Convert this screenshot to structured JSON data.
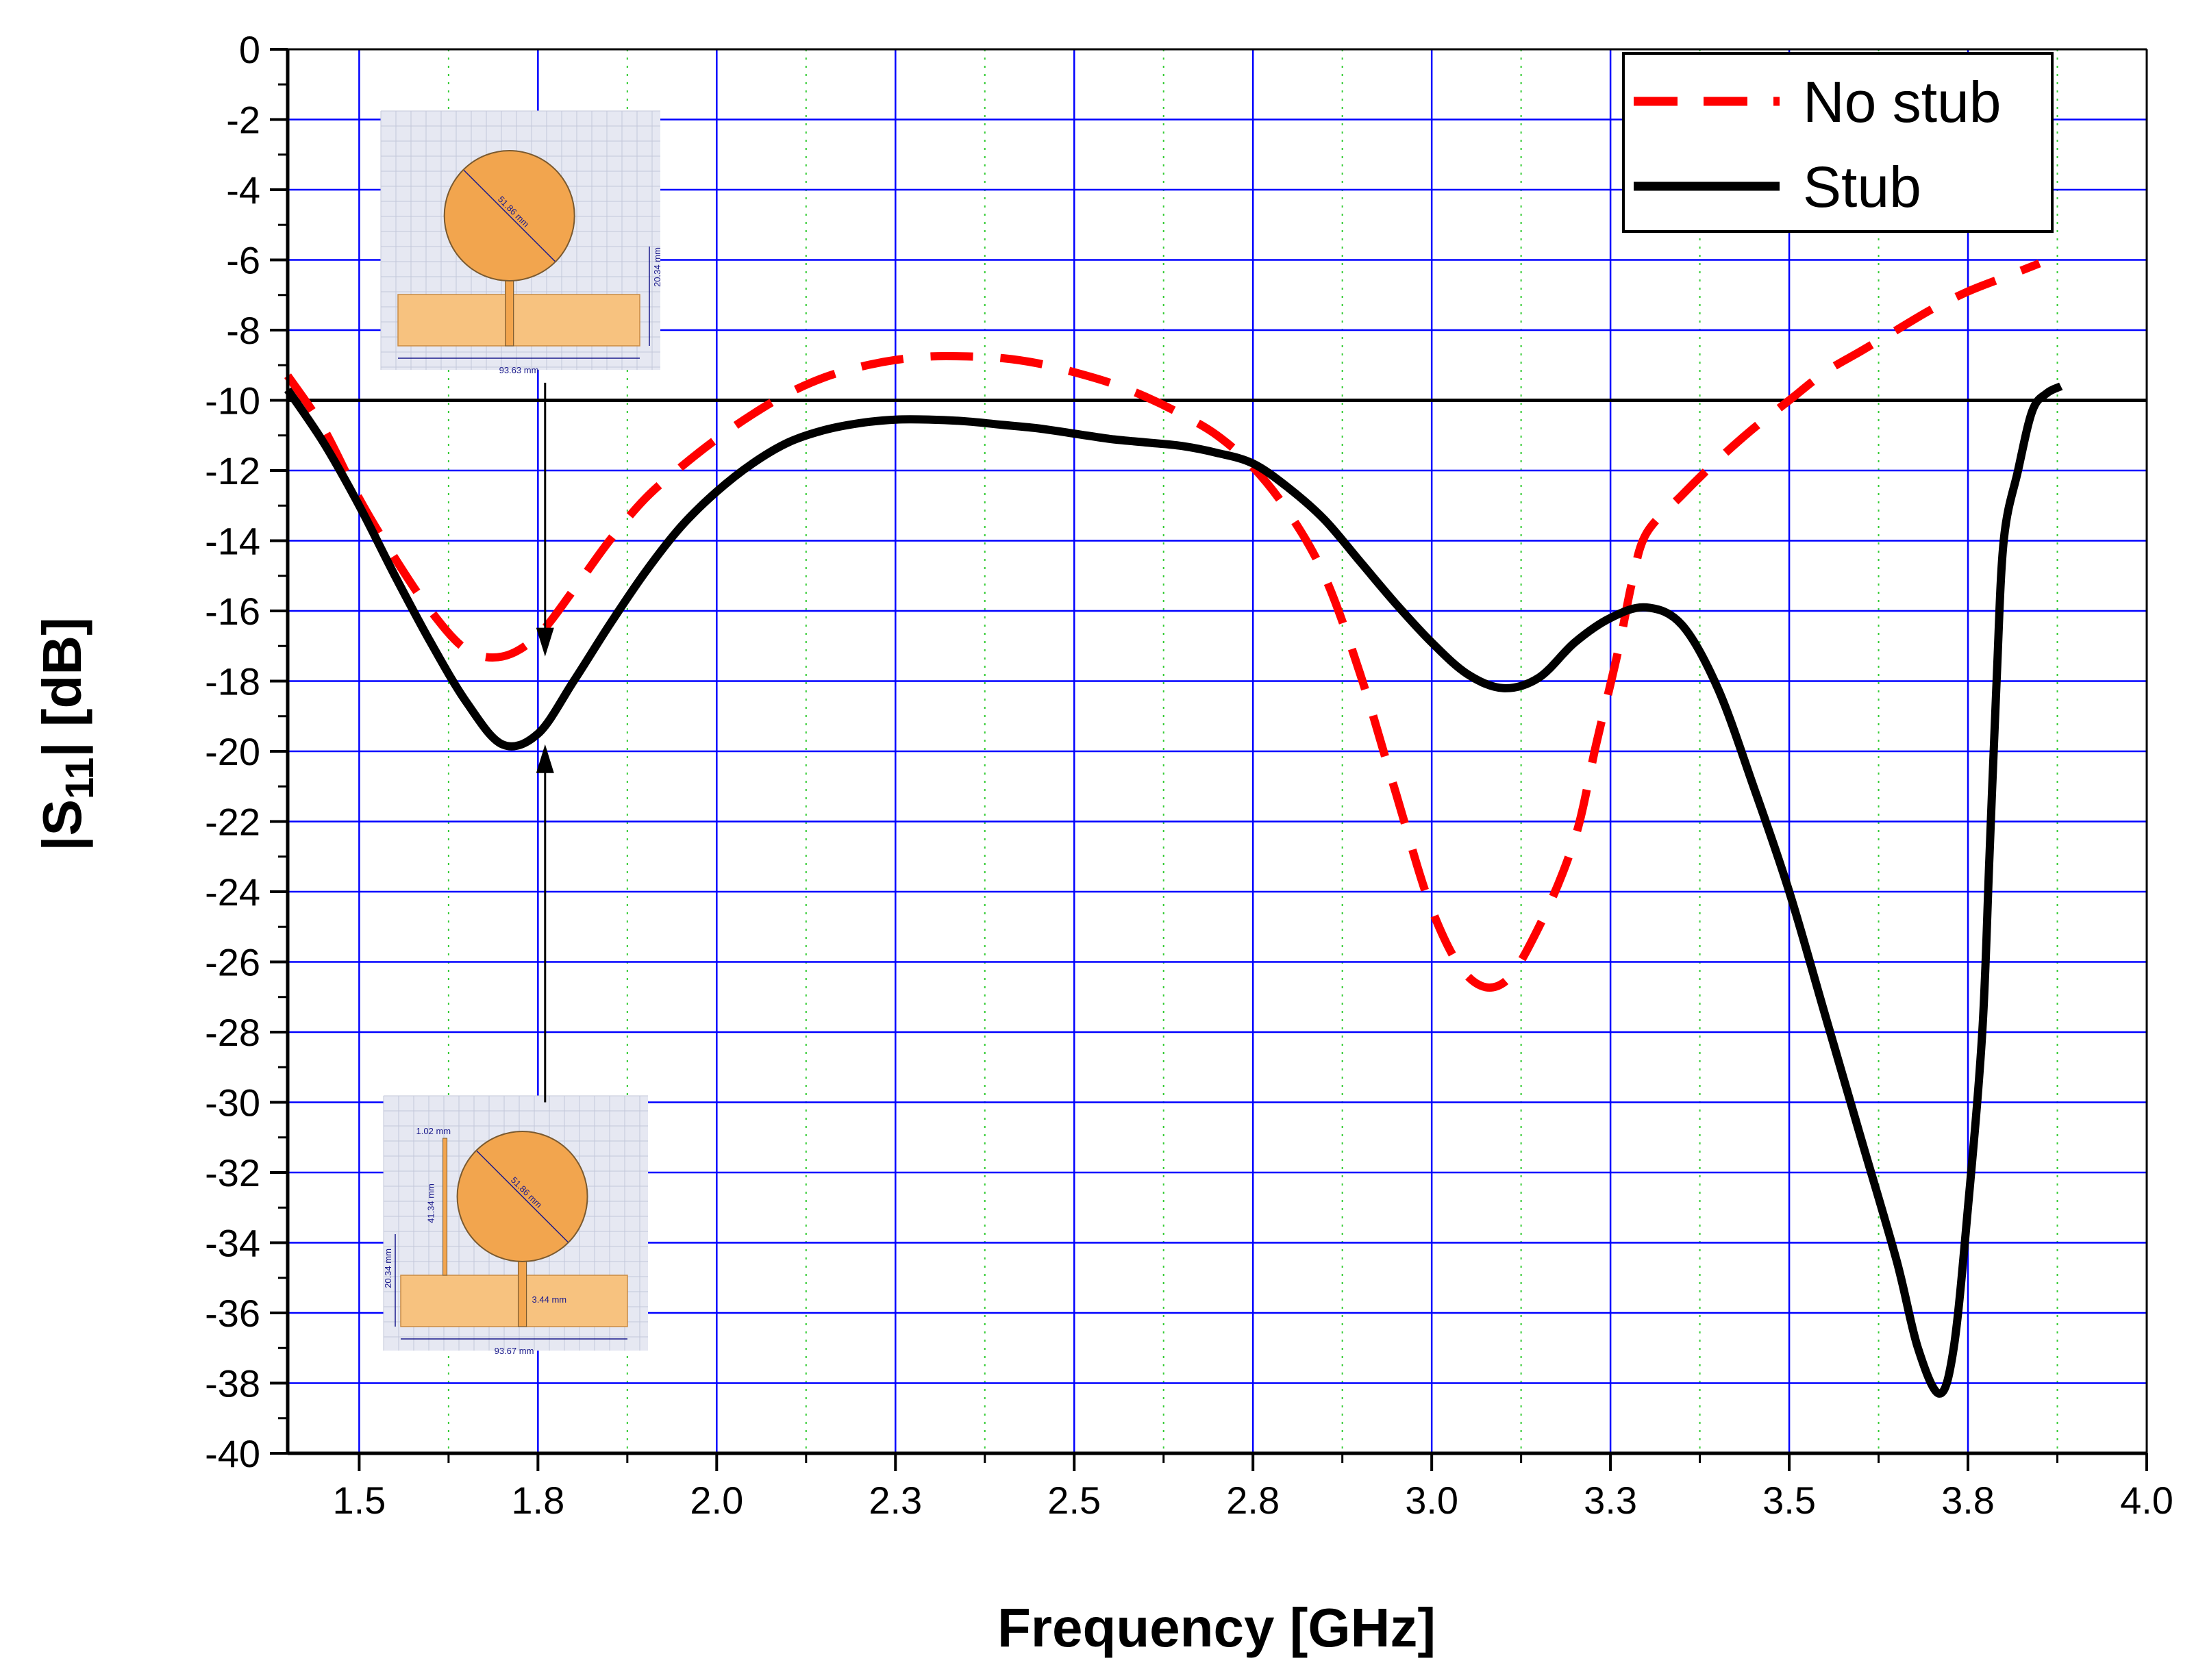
{
  "chart_data": {
    "type": "line",
    "title": "",
    "xlabel": "Frequency [GHz]",
    "ylabel_main": "|S",
    "ylabel_sub": "11",
    "ylabel_tail": "| [dB]",
    "xlim": [
      1.4,
      4.0
    ],
    "ylim": [
      -40,
      0
    ],
    "x_ticks": [
      1.5,
      1.75,
      2.0,
      2.25,
      2.5,
      2.75,
      3.0,
      3.25,
      3.5,
      3.75,
      4.0
    ],
    "x_tick_labels": [
      "1.5",
      "1.8",
      "2.0",
      "2.3",
      "2.5",
      "2.8",
      "3.0",
      "3.3",
      "3.5",
      "3.8",
      "4.0"
    ],
    "y_ticks": [
      0,
      -2,
      -4,
      -6,
      -8,
      -10,
      -12,
      -14,
      -16,
      -18,
      -20,
      -22,
      -24,
      -26,
      -28,
      -30,
      -32,
      -34,
      -36,
      -38,
      -40
    ],
    "y_tick_labels": [
      "0",
      "-2",
      "-4",
      "-6",
      "-8",
      "-10",
      "-12",
      "-14",
      "-16",
      "-18",
      "-20",
      "-22",
      "-24",
      "-26",
      "-28",
      "-30",
      "-32",
      "-34",
      "-36",
      "-38",
      "-40"
    ],
    "reference_line": -10,
    "grid": true,
    "legend_position": "top-right",
    "series": [
      {
        "name": "No stub",
        "color": "#ff0000",
        "style": "dashed",
        "x": [
          1.4,
          1.45,
          1.5,
          1.55,
          1.6,
          1.65,
          1.7,
          1.75,
          1.8,
          1.85,
          1.9,
          1.95,
          2.0,
          2.05,
          2.1,
          2.15,
          2.2,
          2.25,
          2.3,
          2.35,
          2.4,
          2.45,
          2.5,
          2.55,
          2.6,
          2.65,
          2.7,
          2.75,
          2.8,
          2.85,
          2.9,
          2.95,
          3.0,
          3.05,
          3.1,
          3.15,
          3.2,
          3.23,
          3.26,
          3.28,
          3.3,
          3.35,
          3.4,
          3.45,
          3.5,
          3.55,
          3.6,
          3.65,
          3.7,
          3.75,
          3.8,
          3.85
        ],
        "y": [
          -9.3,
          -10.8,
          -12.8,
          -14.5,
          -16.0,
          -17.1,
          -17.3,
          -16.7,
          -15.4,
          -14.0,
          -12.8,
          -11.9,
          -11.1,
          -10.4,
          -9.8,
          -9.35,
          -9.05,
          -8.85,
          -8.75,
          -8.75,
          -8.8,
          -8.95,
          -9.2,
          -9.5,
          -9.9,
          -10.4,
          -11.0,
          -11.9,
          -13.2,
          -15.0,
          -17.8,
          -21.2,
          -24.5,
          -26.4,
          -26.6,
          -25.0,
          -22.5,
          -19.8,
          -17.2,
          -15.2,
          -13.8,
          -12.7,
          -11.7,
          -10.8,
          -10.0,
          -9.2,
          -8.6,
          -8.0,
          -7.4,
          -6.9,
          -6.5,
          -6.1
        ]
      },
      {
        "name": "Stub",
        "color": "#000000",
        "style": "solid",
        "x": [
          1.4,
          1.45,
          1.5,
          1.55,
          1.6,
          1.65,
          1.7,
          1.75,
          1.8,
          1.85,
          1.9,
          1.95,
          2.0,
          2.05,
          2.1,
          2.15,
          2.2,
          2.25,
          2.3,
          2.35,
          2.4,
          2.45,
          2.5,
          2.55,
          2.6,
          2.65,
          2.7,
          2.75,
          2.8,
          2.85,
          2.9,
          2.95,
          3.0,
          3.05,
          3.1,
          3.15,
          3.2,
          3.25,
          3.3,
          3.35,
          3.4,
          3.45,
          3.5,
          3.55,
          3.6,
          3.65,
          3.68,
          3.71,
          3.73,
          3.75,
          3.77,
          3.78,
          3.79,
          3.8,
          3.82,
          3.84,
          3.86,
          3.88
        ],
        "y": [
          -9.7,
          -11.2,
          -13.0,
          -15.0,
          -16.9,
          -18.6,
          -19.8,
          -19.5,
          -18.0,
          -16.4,
          -14.9,
          -13.6,
          -12.6,
          -11.8,
          -11.2,
          -10.85,
          -10.65,
          -10.55,
          -10.55,
          -10.6,
          -10.7,
          -10.8,
          -10.95,
          -11.1,
          -11.2,
          -11.3,
          -11.5,
          -11.8,
          -12.5,
          -13.4,
          -14.6,
          -15.8,
          -16.9,
          -17.8,
          -18.2,
          -17.9,
          -16.9,
          -16.2,
          -15.9,
          -16.4,
          -18.2,
          -21.0,
          -24.0,
          -27.5,
          -31.0,
          -34.5,
          -37.0,
          -38.3,
          -37.0,
          -33.0,
          -28.0,
          -23.0,
          -18.0,
          -14.0,
          -12.0,
          -10.3,
          -9.8,
          -9.6
        ]
      }
    ],
    "annotations": [
      {
        "type": "arrow",
        "from": [
          1.76,
          -30
        ],
        "to": [
          1.76,
          -19.8
        ]
      },
      {
        "type": "arrow",
        "from": [
          1.76,
          -9.5
        ],
        "to": [
          1.76,
          -17.3
        ]
      }
    ]
  },
  "legend": {
    "entries": [
      "No stub",
      "Stub"
    ]
  },
  "insets": {
    "top": {
      "diameter_label": "51.86 mm",
      "height_label": "20.34 mm",
      "width_label": "93.63 mm"
    },
    "bottom": {
      "stub_width_label": "1.02 mm",
      "stub_length_label": "41.34 mm",
      "diameter_label": "51.86 mm",
      "height_label": "20.34 mm",
      "feed_width_label": "3.44 mm",
      "width_label": "93.67 mm"
    }
  },
  "colors": {
    "grid": "#0000ff",
    "minor_grid": "#33cc33",
    "patch": "#f2a54e",
    "substrate": "#f7c27f",
    "inset_bg": "#e6e8f2"
  }
}
